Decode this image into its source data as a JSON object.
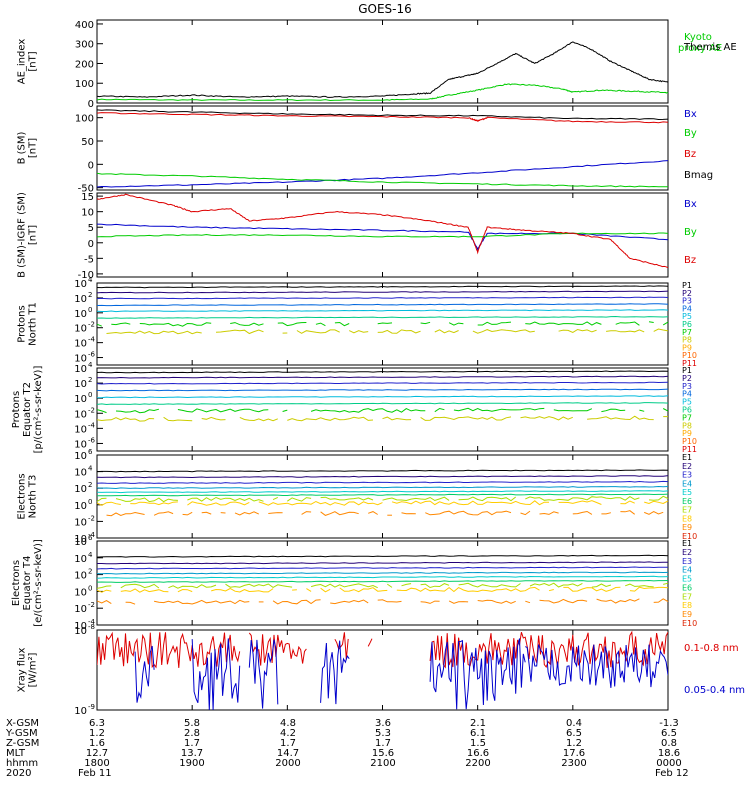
{
  "title": "GOES-16",
  "date_row": {
    "year": "2020",
    "start": "Feb 11",
    "end": "Feb 12"
  },
  "ephemeris": {
    "rows": [
      {
        "label": "X-GSM",
        "values": [
          "6.3",
          "5.8",
          "4.8",
          "3.6",
          "2.1",
          "0.4",
          "-1.3"
        ]
      },
      {
        "label": "Y-GSM",
        "values": [
          "1.2",
          "2.8",
          "4.2",
          "5.3",
          "6.1",
          "6.5",
          "6.5"
        ]
      },
      {
        "label": "Z-GSM",
        "values": [
          "1.6",
          "1.7",
          "1.7",
          "1.7",
          "1.5",
          "1.2",
          "0.8"
        ]
      },
      {
        "label": "MLT",
        "values": [
          "12.7",
          "13.7",
          "14.7",
          "15.6",
          "16.6",
          "17.6",
          "18.6"
        ]
      },
      {
        "label": "hhmm",
        "values": [
          "1800",
          "1900",
          "2000",
          "2100",
          "2200",
          "2300",
          "0000"
        ]
      }
    ]
  },
  "colors": {
    "black": "#000000",
    "green": "#00cc00",
    "red": "#dd0000",
    "blue": "#0000cc",
    "p_series": [
      "#000000",
      "#220077",
      "#2222cc",
      "#0066dd",
      "#00bbdd",
      "#00cc88",
      "#00cc00",
      "#cccc00",
      "#ffaa00",
      "#ff6600",
      "#dd0000",
      "#990000"
    ],
    "e_series": [
      "#000000",
      "#220077",
      "#2222cc",
      "#0099cc",
      "#00cccc",
      "#00cc66",
      "#aadd00",
      "#ffcc00",
      "#ff8800",
      "#dd2200",
      "#990000"
    ]
  },
  "chart_data": [
    {
      "type": "line",
      "id": "ae",
      "ylabel": [
        "AE_index",
        "[nT]"
      ],
      "ylim": [
        0,
        420
      ],
      "yticks": [
        "0",
        "100",
        "200",
        "300",
        "400"
      ],
      "ytick_values": [
        0,
        100,
        200,
        300,
        400
      ],
      "xlim": [
        18,
        24
      ],
      "series": [
        {
          "name": "Kyoto proxy AE",
          "label_lines": [
            "Kyoto",
            "proxy AE"
          ],
          "color": "#00cc00",
          "x": [
            18,
            19,
            20,
            21,
            21.5,
            21.7,
            22,
            22.3,
            22.6,
            22.9,
            23,
            23.3,
            23.6,
            23.9,
            24
          ],
          "y": [
            18,
            15,
            15,
            15,
            20,
            40,
            65,
            95,
            90,
            70,
            55,
            65,
            60,
            55,
            50
          ]
        },
        {
          "name": "Themis AE",
          "label_lines": [
            "Themis AE"
          ],
          "color": "#000000",
          "x": [
            18,
            18.5,
            19,
            19.5,
            20,
            20.5,
            21,
            21.3,
            21.5,
            21.7,
            21.9,
            22,
            22.2,
            22.4,
            22.6,
            22.8,
            23,
            23.2,
            23.4,
            23.6,
            23.8,
            24
          ],
          "y": [
            35,
            30,
            40,
            30,
            35,
            30,
            35,
            45,
            50,
            120,
            140,
            150,
            200,
            250,
            200,
            250,
            310,
            270,
            210,
            165,
            120,
            105
          ]
        }
      ]
    },
    {
      "type": "line",
      "id": "bsm",
      "ylabel": [
        "B (SM)",
        "[nT]"
      ],
      "ylim": [
        -55,
        125
      ],
      "yticks": [
        "-50",
        "0",
        "50",
        "100"
      ],
      "ytick_values": [
        -50,
        0,
        50,
        100
      ],
      "xlim": [
        18,
        24
      ],
      "series": [
        {
          "name": "Bx",
          "color": "#0000cc",
          "x": [
            18,
            19,
            20,
            21,
            22,
            23,
            24
          ],
          "y": [
            -48,
            -44,
            -38,
            -30,
            -18,
            -5,
            8
          ]
        },
        {
          "name": "By",
          "color": "#00cc00",
          "x": [
            18,
            19,
            20,
            21,
            22,
            23,
            24
          ],
          "y": [
            -20,
            -25,
            -32,
            -38,
            -42,
            -46,
            -48
          ]
        },
        {
          "name": "Bz",
          "color": "#dd0000",
          "x": [
            18,
            19,
            20,
            21,
            21.9,
            22,
            22.1,
            23,
            24
          ],
          "y": [
            110,
            107,
            104,
            102,
            100,
            93,
            100,
            92,
            90
          ]
        },
        {
          "name": "Bmag",
          "color": "#000000",
          "x": [
            18,
            19,
            20,
            21,
            22,
            23,
            24
          ],
          "y": [
            116,
            112,
            108,
            105,
            104,
            98,
            97
          ]
        }
      ]
    },
    {
      "type": "line",
      "id": "bigrf",
      "ylabel": [
        "B (SM)-IGRF (SM)",
        "[nT]"
      ],
      "ylim": [
        -11,
        16
      ],
      "yticks": [
        "-10",
        "-5",
        "0",
        "5",
        "10",
        "15"
      ],
      "ytick_values": [
        -10,
        -5,
        0,
        5,
        10,
        15
      ],
      "xlim": [
        18,
        24
      ],
      "series": [
        {
          "name": "Bx",
          "color": "#0000cc",
          "x": [
            18,
            19,
            20,
            21,
            21.9,
            22,
            22.1,
            23,
            24
          ],
          "y": [
            6,
            5,
            4.5,
            4,
            3.5,
            -2,
            3,
            3,
            1
          ]
        },
        {
          "name": "By",
          "color": "#00cc00",
          "x": [
            18,
            19,
            20,
            21,
            22,
            23,
            24
          ],
          "y": [
            2,
            2.5,
            2.5,
            2,
            2,
            3,
            3
          ]
        },
        {
          "name": "Bz",
          "color": "#dd0000",
          "x": [
            18,
            18.3,
            18.8,
            19,
            19.4,
            19.6,
            20,
            20.5,
            21,
            21.5,
            21.9,
            22,
            22.1,
            22.5,
            23,
            23.4,
            23.6,
            24
          ],
          "y": [
            14,
            15.5,
            12,
            10,
            11,
            7,
            8,
            10,
            9,
            7,
            5,
            -3,
            5,
            4,
            3,
            1,
            -5,
            -8
          ]
        }
      ]
    },
    {
      "type": "line",
      "id": "pnorth",
      "log": true,
      "ylabel": [
        "Protons",
        "North T1"
      ],
      "ylim_exp": [
        -7,
        4
      ],
      "yticks_exp": [
        4,
        2,
        0,
        -2,
        -4,
        -6
      ],
      "xlim": [
        18,
        24
      ],
      "series_names": [
        "P1",
        "P2",
        "P3",
        "P4",
        "P5",
        "P6",
        "P7",
        "P8",
        "P9",
        "P10",
        "P11"
      ],
      "series_levels_exp": [
        3.4,
        2.7,
        1.9,
        1.0,
        0.2,
        -0.7,
        -1.6,
        -2.6,
        -3.8,
        -5.2,
        -6.3
      ],
      "series_visible": [
        true,
        true,
        true,
        true,
        true,
        true,
        true,
        true,
        false,
        false,
        false
      ]
    },
    {
      "type": "line",
      "id": "pequator",
      "log": true,
      "ylabel": [
        "Protons",
        "Equator T2",
        "[p/(cm²-s-sr-keV)]"
      ],
      "ylim_exp": [
        -7,
        4
      ],
      "yticks_exp": [
        4,
        2,
        0,
        -2,
        -4,
        -6
      ],
      "xlim": [
        18,
        24
      ],
      "series_names": [
        "P1",
        "P2",
        "P3",
        "P4",
        "P5",
        "P6",
        "P7",
        "P8",
        "P9",
        "P10",
        "P11"
      ],
      "series_levels_exp": [
        3.4,
        2.7,
        1.9,
        1.0,
        0.1,
        -0.8,
        -1.7,
        -2.8,
        -3.9,
        -5.2,
        -6.3
      ],
      "series_visible": [
        true,
        true,
        true,
        true,
        true,
        true,
        true,
        true,
        false,
        false,
        false
      ]
    },
    {
      "type": "line",
      "id": "enorth",
      "log": true,
      "ylabel": [
        "Electrons",
        "North T3"
      ],
      "ylim_exp": [
        -4,
        6
      ],
      "yticks_exp": [
        6,
        4,
        2,
        0,
        -2,
        -4
      ],
      "xlim": [
        18,
        24
      ],
      "series_names": [
        "E1",
        "E2",
        "E3",
        "E4",
        "E5",
        "E6",
        "E7",
        "E8",
        "E9",
        "E10"
      ],
      "series_levels_exp": [
        4.0,
        3.3,
        2.6,
        2.0,
        1.5,
        1.1,
        0.6,
        0.1,
        -1.1,
        -1.8
      ],
      "series_visible": [
        true,
        true,
        true,
        true,
        true,
        true,
        true,
        true,
        true,
        false
      ]
    },
    {
      "type": "line",
      "id": "eequator",
      "log": true,
      "ylabel": [
        "Electrons",
        "Equator T4",
        "[e/(cm²-s-sr-keV)]"
      ],
      "ylim_exp": [
        -4,
        6
      ],
      "yticks_exp": [
        6,
        4,
        2,
        0,
        -2,
        -4
      ],
      "xlim": [
        18,
        24
      ],
      "series_names": [
        "E1",
        "E2",
        "E3",
        "E4",
        "E5",
        "E6",
        "E7",
        "E8",
        "E9",
        "E10"
      ],
      "series_levels_exp": [
        4.1,
        3.3,
        2.7,
        2.1,
        1.6,
        1.1,
        0.6,
        0.1,
        -1.3,
        -2.0
      ],
      "series_visible": [
        true,
        true,
        true,
        true,
        true,
        true,
        true,
        true,
        true,
        false
      ]
    },
    {
      "type": "line",
      "id": "xray",
      "log": true,
      "ylabel": [
        "Xray flux",
        "[W/m²]"
      ],
      "ylim_exp": [
        -9,
        -8
      ],
      "yticks_exp": [
        -8,
        -9
      ],
      "xlim": [
        18,
        24
      ],
      "series": [
        {
          "name": "0.1-0.8 nm",
          "color": "#dd0000"
        },
        {
          "name": "0.05-0.4 nm",
          "color": "#0000cc"
        }
      ]
    }
  ]
}
